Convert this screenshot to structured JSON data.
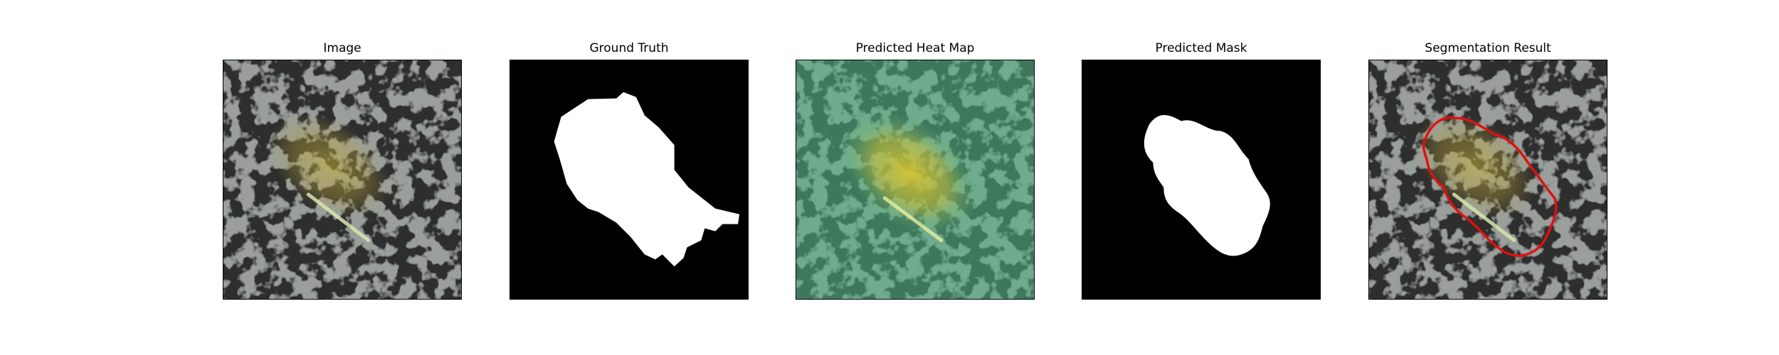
{
  "figure": {
    "panels": [
      {
        "title": "Image"
      },
      {
        "title": "Ground Truth"
      },
      {
        "title": "Predicted Heat Map"
      },
      {
        "title": "Predicted Mask"
      },
      {
        "title": "Segmentation Result"
      }
    ],
    "colors": {
      "background": "#ffffff",
      "mask_foreground": "#ffffff",
      "mask_background": "#000000",
      "heatmap_low": "#4fb583",
      "heatmap_high": "#d7c12a",
      "contour": "#e01010",
      "texture_light": "#9a9f9c",
      "texture_dark": "#2e2f2e"
    }
  }
}
